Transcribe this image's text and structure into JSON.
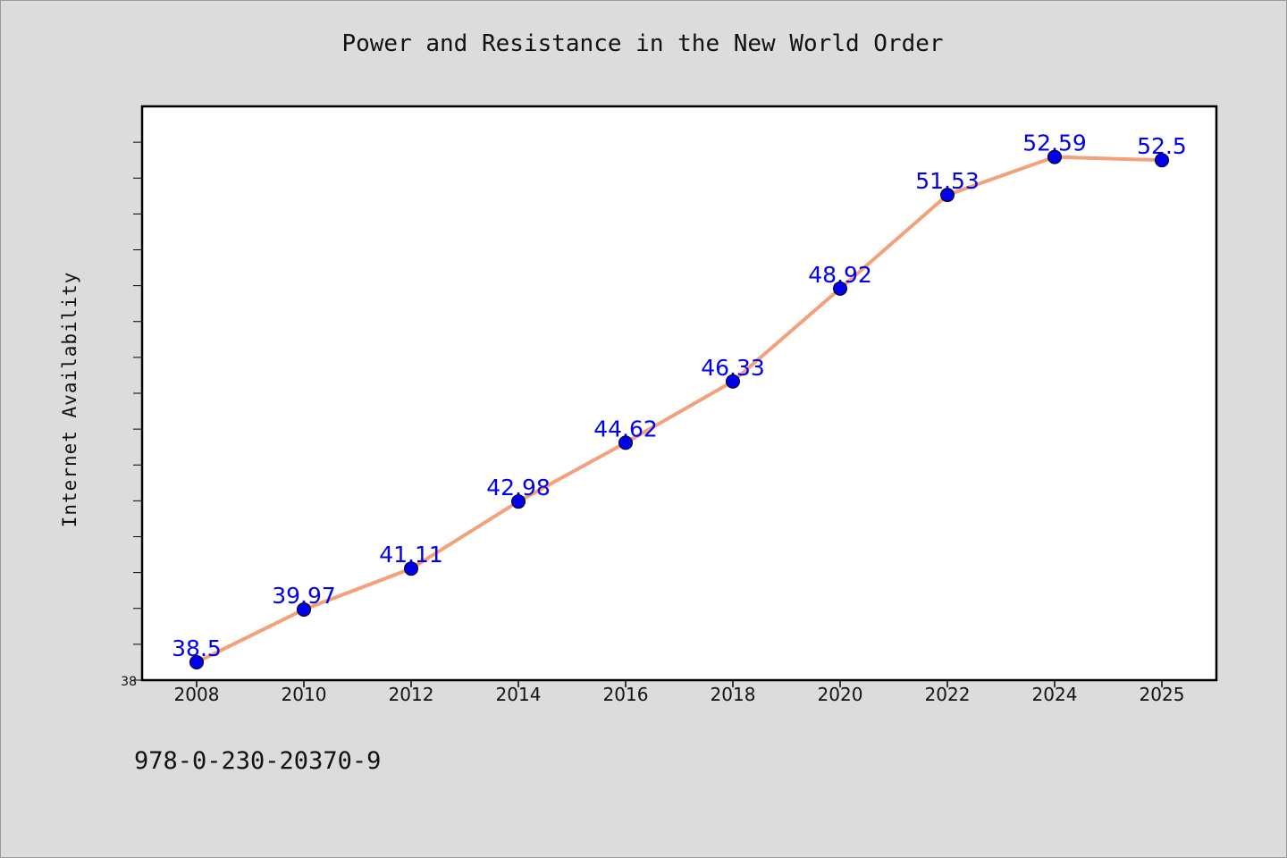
{
  "chart_data": {
    "type": "line",
    "title": "Power and Resistance in the New World Order",
    "xlabel": "",
    "ylabel": "Internet Availability",
    "categories": [
      "2008",
      "2010",
      "2012",
      "2014",
      "2016",
      "2018",
      "2020",
      "2022",
      "2024",
      "2025"
    ],
    "series": [
      {
        "values": [
          38.5,
          39.97,
          41.11,
          42.98,
          44.62,
          46.33,
          48.92,
          51.53,
          52.59,
          52.5
        ],
        "point_labels": [
          "38.5",
          "39.97",
          "41.11",
          "42.98",
          "44.62",
          "46.33",
          "48.92",
          "51.53",
          "52.59",
          "52.5"
        ],
        "line_color": "#f4a07a",
        "marker_color": "#0000ee",
        "label_color": "#0000ee"
      }
    ],
    "ylim": [
      38,
      54
    ],
    "y_tick_values": [
      38,
      39,
      40,
      41,
      42,
      43,
      44,
      45,
      46,
      47,
      48,
      49,
      50,
      51,
      52,
      53
    ],
    "y_tick_labels": [
      "38"
    ],
    "grid": false,
    "legend": "none"
  },
  "footer": {
    "code": "978-0-230-20370-9"
  },
  "colors": {
    "background": "#dcdcdc",
    "plot_background": "#ffffff"
  }
}
